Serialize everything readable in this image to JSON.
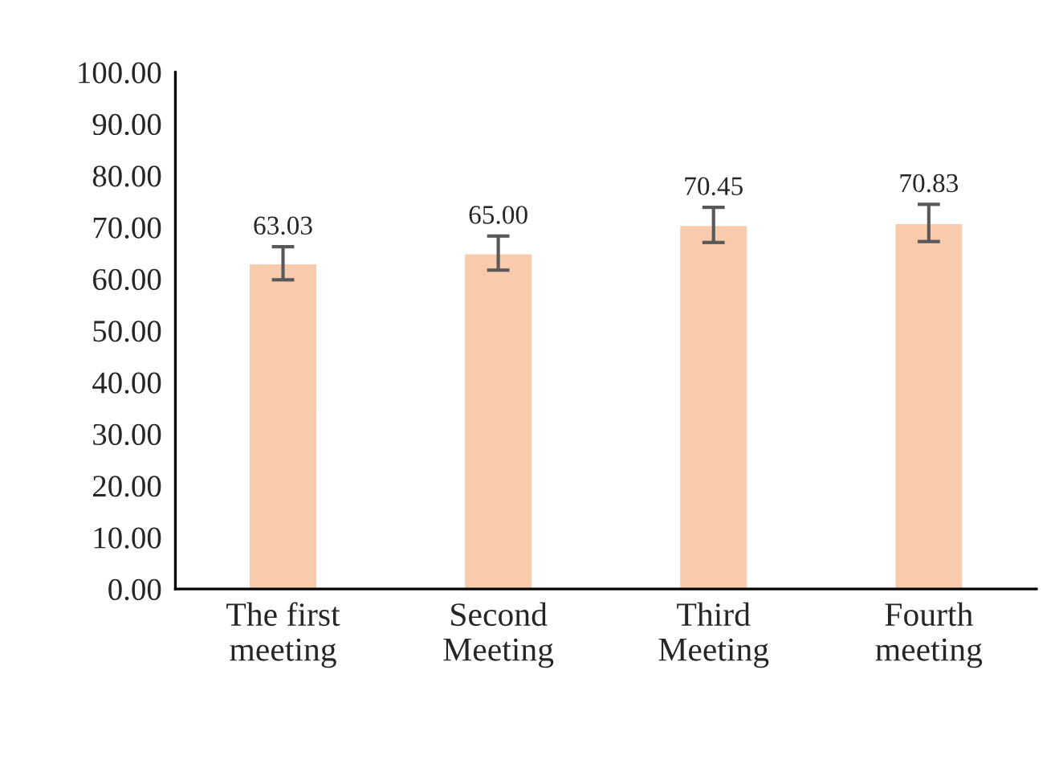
{
  "chart_data": {
    "type": "bar",
    "categories": [
      "The first\nmeeting",
      "Second\nMeeting",
      "Third\nMeeting",
      "Fourth\nmeeting"
    ],
    "values": [
      63.03,
      65.0,
      70.45,
      70.83
    ],
    "value_labels": [
      "63.03",
      "65.00",
      "70.45",
      "70.83"
    ],
    "errors": [
      3.2,
      3.3,
      3.4,
      3.6
    ],
    "color": "#f8cbad",
    "ylim": [
      0,
      100
    ],
    "yticks": [
      {
        "value": 0,
        "label": "0.00"
      },
      {
        "value": 10,
        "label": "10.00"
      },
      {
        "value": 20,
        "label": "20.00"
      },
      {
        "value": 30,
        "label": "30.00"
      },
      {
        "value": 40,
        "label": "40.00"
      },
      {
        "value": 50,
        "label": "50.00"
      },
      {
        "value": 60,
        "label": "60.00"
      },
      {
        "value": 70,
        "label": "70.00"
      },
      {
        "value": 80,
        "label": "80.00"
      },
      {
        "value": 90,
        "label": "90.00"
      },
      {
        "value": 100,
        "label": "100.00"
      }
    ],
    "grid": false,
    "legend": false
  }
}
